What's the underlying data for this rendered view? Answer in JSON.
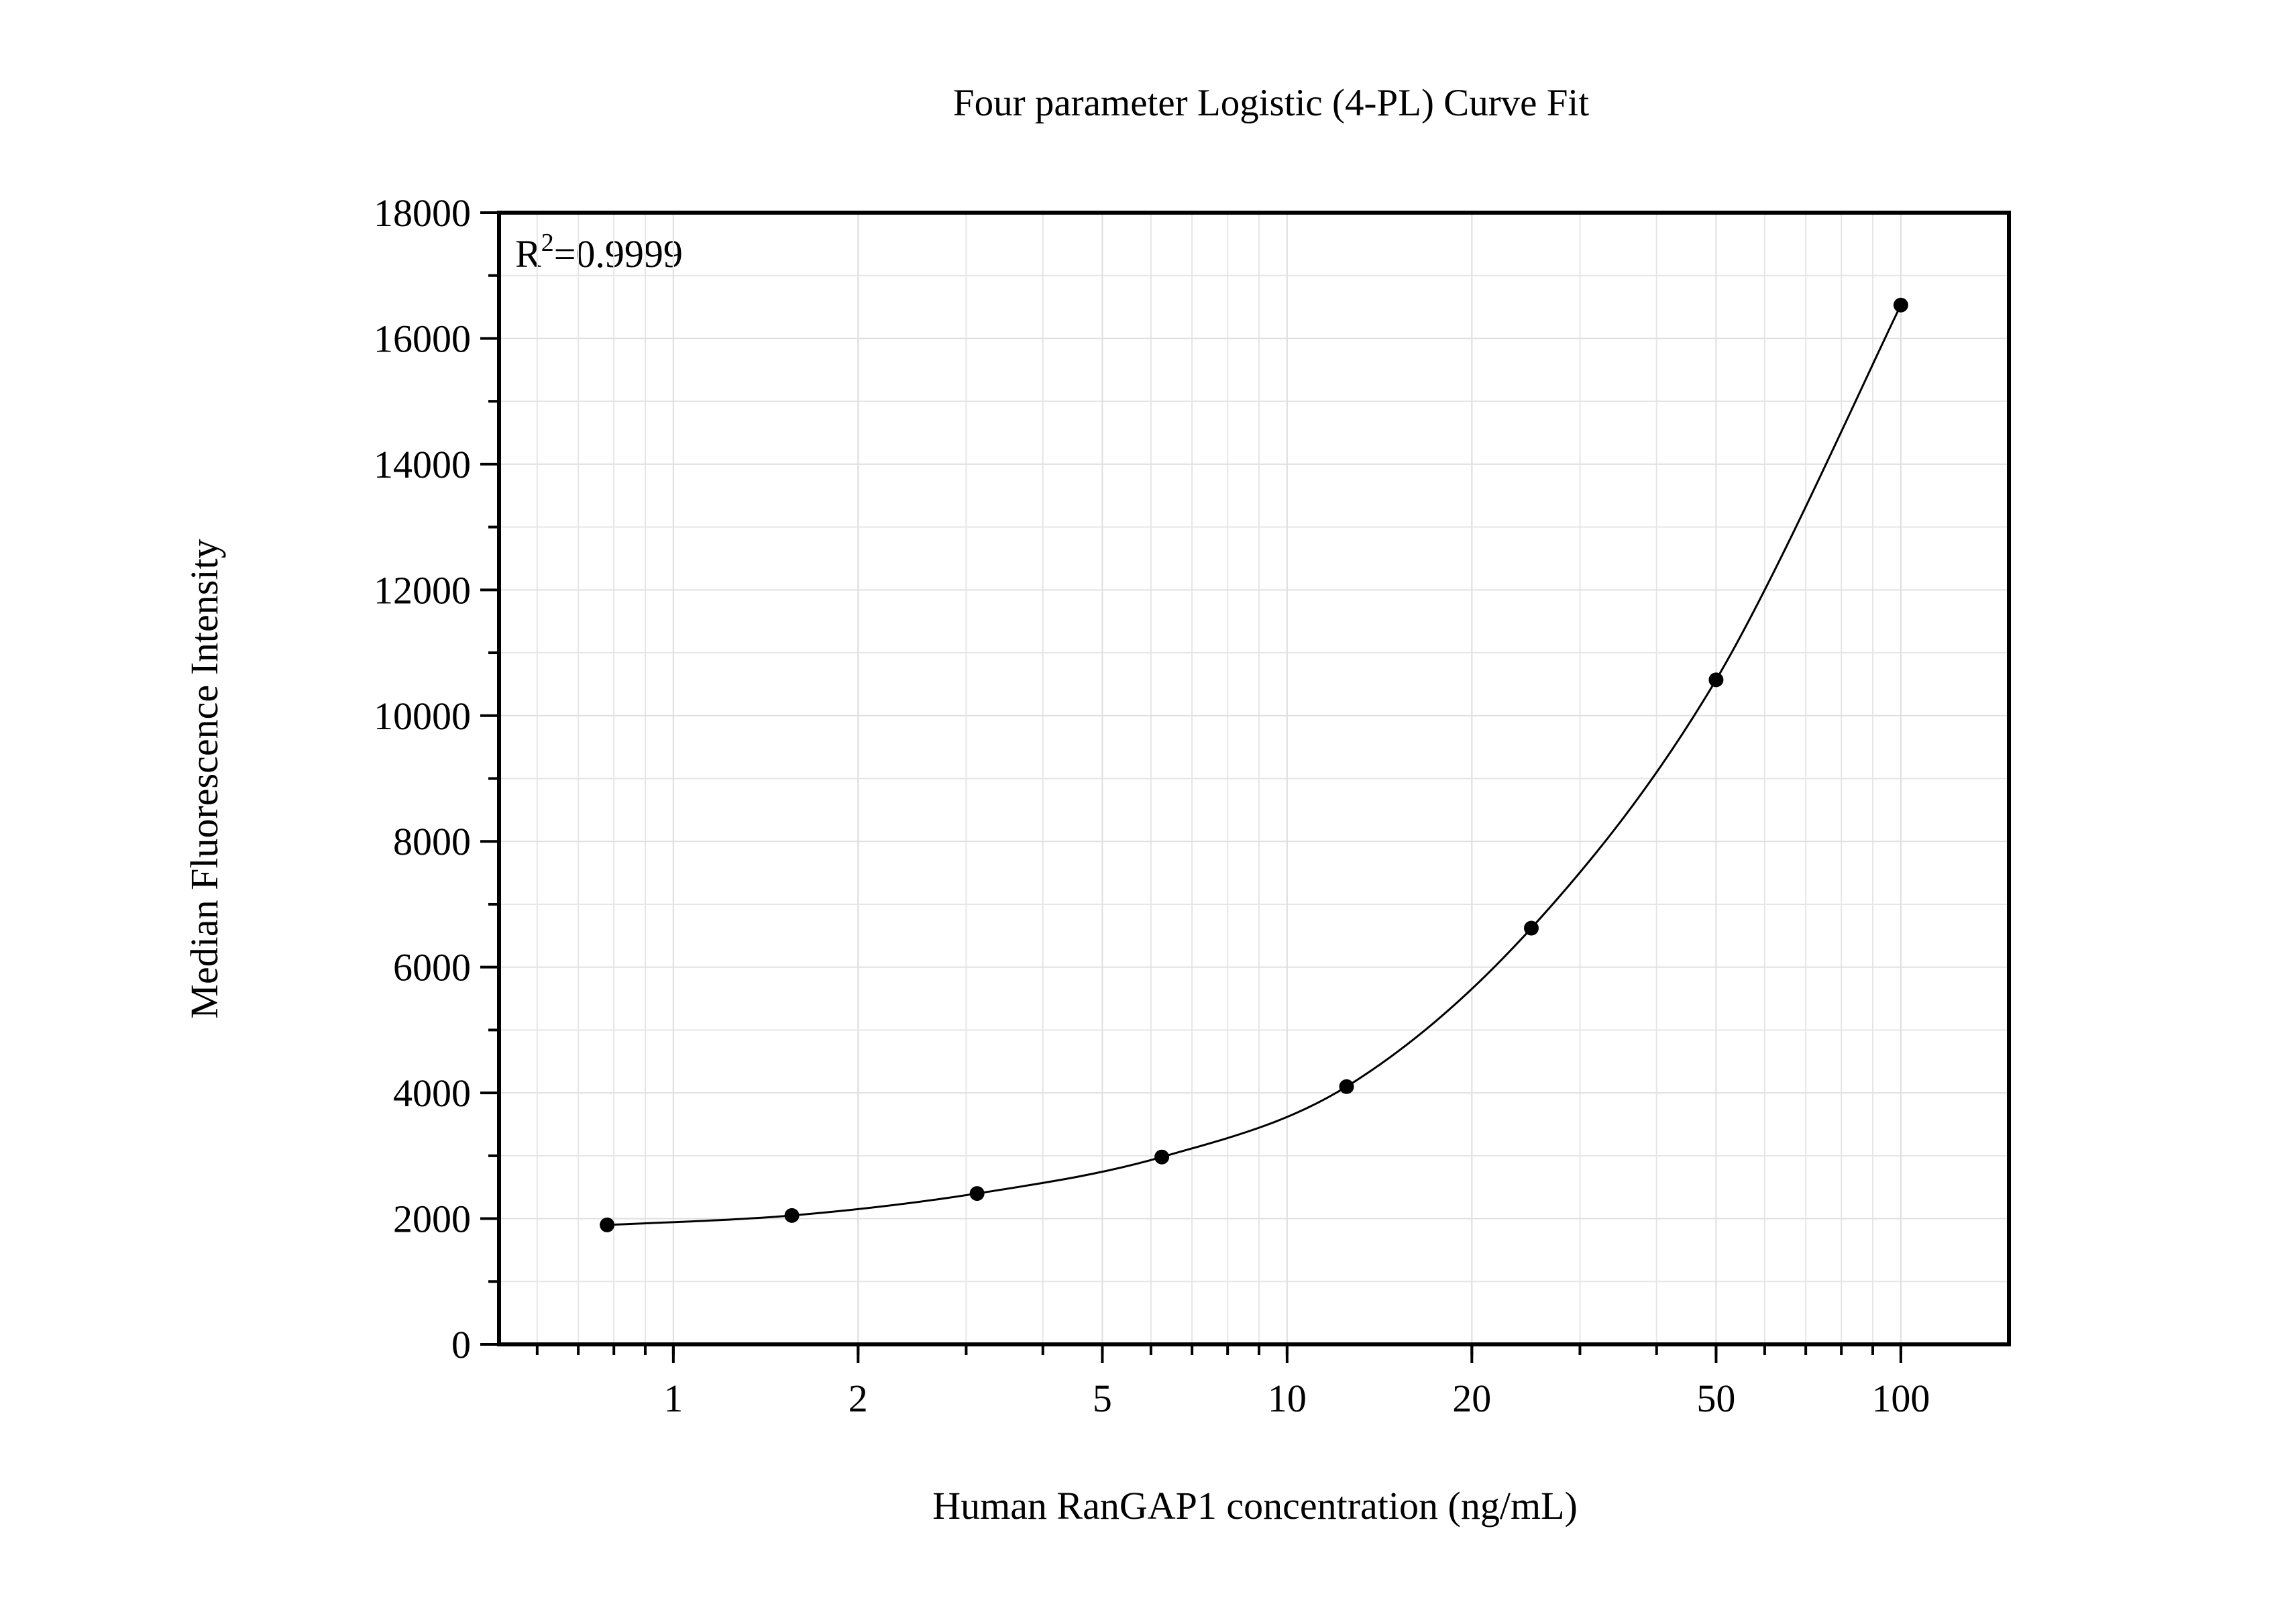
{
  "chart_data": {
    "type": "scatter",
    "title": "Four parameter Logistic (4-PL) Curve Fit",
    "x_label": "Human RanGAP1 concentration (ng/mL)",
    "y_label": "Median Fluorescence Intensity",
    "annotation": {
      "base": "R",
      "sup": "2",
      "rest": "=0.9999"
    },
    "x_scale": "log",
    "grid": true,
    "xlim": [
      0.52,
      150
    ],
    "xticks": [
      1,
      2,
      5,
      10,
      20,
      50,
      100
    ],
    "ylim": [
      0,
      18000
    ],
    "yticks": [
      0,
      2000,
      4000,
      6000,
      8000,
      10000,
      12000,
      14000,
      16000,
      18000
    ],
    "fit_line": true,
    "series": [
      {
        "color": "#000000",
        "x": [
          0.78,
          1.56,
          3.125,
          6.25,
          12.5,
          25,
          50,
          100
        ],
        "values": [
          1900,
          2050,
          2400,
          2980,
          4100,
          6620,
          10570,
          16530
        ]
      }
    ]
  }
}
